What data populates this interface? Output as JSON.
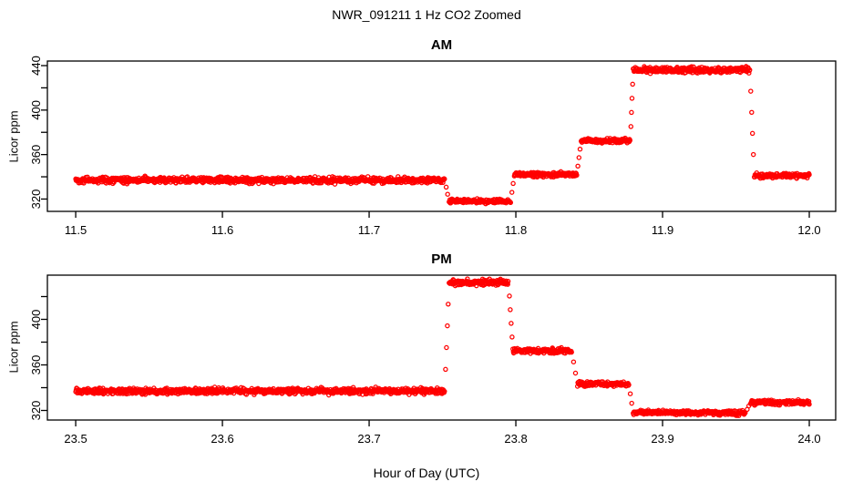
{
  "title": "NWR_091211  1 Hz CO2 Zoomed",
  "xlabel": "Hour of Day (UTC)",
  "ylabel": "Licor ppm",
  "point_color": "#FF0000",
  "axis_color": "#000000",
  "background_color": "#FFFFFF",
  "sample_rate_hz": 1,
  "chart_data": [
    {
      "type": "scatter",
      "title": "AM",
      "ylabel": "Licor ppm",
      "marker": "open-circle",
      "color": "#FF0000",
      "xlim": [
        11.4807,
        12.018
      ],
      "ylim": [
        308.9,
        444.1
      ],
      "x_ticks": [
        11.5,
        11.6,
        11.7,
        11.8,
        11.9,
        12.0
      ],
      "x_tick_labels": [
        "11.5",
        "11.6",
        "11.7",
        "11.8",
        "11.9",
        "12.0"
      ],
      "y_ticks": [
        320,
        340,
        360,
        380,
        400,
        420,
        440
      ],
      "y_labeled_ticks": [
        320,
        360,
        400,
        440
      ],
      "y_tick_labels": [
        "320",
        "360",
        "400",
        "440"
      ],
      "grid": false,
      "segments": [
        {
          "t_start": 11.5,
          "t_end": 11.7515,
          "ppm": 337.0,
          "noise_sd": 1.3
        },
        {
          "t_start": 11.7545,
          "t_end": 11.7965,
          "ppm": 318.0,
          "noise_sd": 1.0
        },
        {
          "t_start": 11.799,
          "t_end": 11.8415,
          "ppm": 342.0,
          "noise_sd": 1.0
        },
        {
          "t_start": 11.8445,
          "t_end": 11.878,
          "ppm": 372.5,
          "noise_sd": 1.0
        },
        {
          "t_start": 11.88,
          "t_end": 11.9595,
          "ppm": 436.0,
          "noise_sd": 1.3
        },
        {
          "t_start": 11.9625,
          "t_end": 12.0,
          "ppm": 341.0,
          "noise_sd": 1.0
        }
      ]
    },
    {
      "type": "scatter",
      "title": "PM",
      "ylabel": "Licor ppm",
      "marker": "open-circle",
      "color": "#FF0000",
      "xlim": [
        23.4807,
        24.018
      ],
      "ylim": [
        311.6,
        438.8
      ],
      "x_ticks": [
        23.5,
        23.6,
        23.7,
        23.8,
        23.9,
        24.0
      ],
      "x_tick_labels": [
        "23.5",
        "23.6",
        "23.7",
        "23.8",
        "23.9",
        "24.0"
      ],
      "y_ticks": [
        320,
        340,
        360,
        380,
        400,
        420
      ],
      "y_labeled_ticks": [
        320,
        360,
        400
      ],
      "y_tick_labels": [
        "320",
        "360",
        "400"
      ],
      "grid": false,
      "segments": [
        {
          "t_start": 23.5,
          "t_end": 23.7515,
          "ppm": 337.0,
          "noise_sd": 1.3
        },
        {
          "t_start": 23.7545,
          "t_end": 23.795,
          "ppm": 432.5,
          "noise_sd": 1.3
        },
        {
          "t_start": 23.798,
          "t_end": 23.838,
          "ppm": 372.5,
          "noise_sd": 1.0
        },
        {
          "t_start": 23.842,
          "t_end": 23.877,
          "ppm": 343.0,
          "noise_sd": 1.0
        },
        {
          "t_start": 23.88,
          "t_end": 23.9565,
          "ppm": 318.0,
          "noise_sd": 1.0
        },
        {
          "t_start": 23.96,
          "t_end": 24.0,
          "ppm": 327.0,
          "noise_sd": 1.0
        }
      ]
    }
  ]
}
